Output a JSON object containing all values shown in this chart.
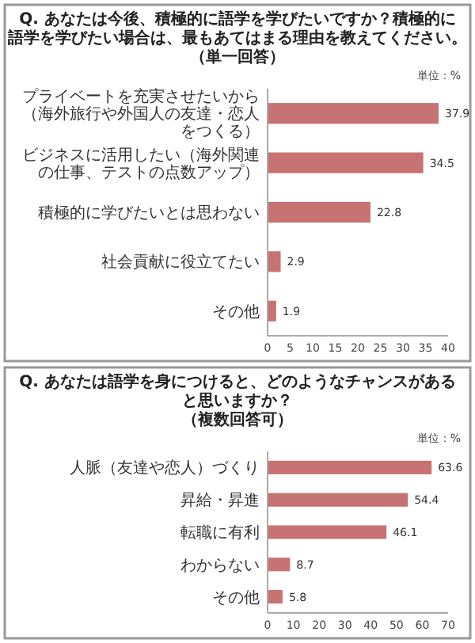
{
  "chart_data": [
    {
      "type": "bar",
      "orientation": "horizontal",
      "title": "Q. あなたは今後、積極的に語学を学びたいですか？積極的に語学を学びたい場合は、最もあてはまる理由を教えてください。",
      "subtitle": "（単一回答）",
      "annotations": [
        "単位：%"
      ],
      "categories": [
        "プライベートを充実させたいから（海外旅行や外国人の友達・恋人をつくる）",
        "ビジネスに活用したい（海外関連の仕事、テストの点数アップ）",
        "積極的に学びたいとは思わない",
        "社会貢献に役立てたい",
        "その他"
      ],
      "series": [
        {
          "color": "#c77373",
          "values": [
            37.9,
            34.5,
            22.8,
            2.9,
            1.9
          ]
        }
      ],
      "xlim": [
        0,
        40
      ],
      "xticks": [
        0,
        5,
        10,
        15,
        20,
        25,
        30,
        35,
        40
      ],
      "data_labels": true
    },
    {
      "type": "bar",
      "orientation": "horizontal",
      "title": "Q. あなたは語学を身につけると、どのようなチャンスがあると思いますか？",
      "subtitle": "（複数回答可）",
      "annotations": [
        "単位：%"
      ],
      "categories": [
        "人脈（友達や恋人）づくり",
        "昇給・昇進",
        "転職に有利",
        "わからない",
        "その他"
      ],
      "series": [
        {
          "color": "#c77373",
          "values": [
            63.6,
            54.4,
            46.1,
            8.7,
            5.8
          ]
        }
      ],
      "xlim": [
        0,
        70
      ],
      "xticks": [
        0,
        10,
        20,
        30,
        40,
        50,
        60,
        70
      ],
      "data_labels": true
    }
  ]
}
